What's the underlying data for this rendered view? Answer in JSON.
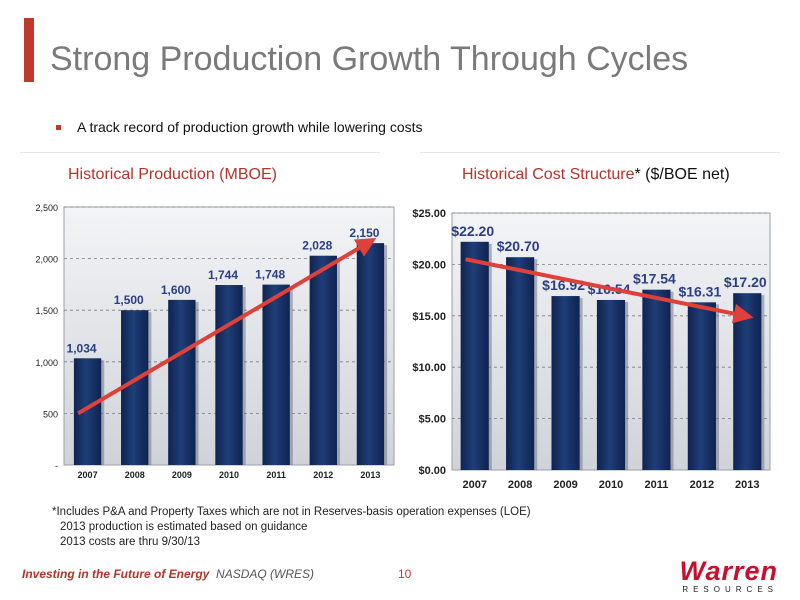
{
  "slide": {
    "title": "Strong Production Growth Through Cycles",
    "bullet": "A track record of production growth while lowering costs",
    "footnote_1": "*Includes P&A and Property Taxes which are not in Reserves-basis operation expenses (LOE)",
    "footnote_2": "2013 production is estimated based on guidance",
    "footnote_3": "2013 costs are thru 9/30/13",
    "footer_tagline": "Investing in the Future of Energy",
    "footer_ticker": "NASDAQ (WRES)",
    "page_number": "10",
    "logo_name": "Warren",
    "logo_sub": "RESOURCES"
  },
  "colors": {
    "accent": "#c0392b",
    "bar": "#1f3e78",
    "plot_bg": "#cfd3d9",
    "trend": "#e0403a",
    "label_blue": "#2b3f85"
  },
  "chart_data": [
    {
      "type": "bar",
      "title": "Historical Production (MBOE)",
      "categories": [
        "2007",
        "2008",
        "2009",
        "2010",
        "2011",
        "2012",
        "2013"
      ],
      "values": [
        1034,
        1500,
        1600,
        1744,
        1748,
        2028,
        2150
      ],
      "data_labels": [
        "1,034",
        "1,500",
        "1,600",
        "1,744",
        "1,748",
        "2,028",
        "2,150"
      ],
      "ylim": [
        0,
        2500
      ],
      "yticks": [
        0,
        500,
        1000,
        1500,
        2000,
        2500
      ],
      "ytick_labels": [
        "-",
        "500",
        "1,000",
        "1,500",
        "2,000",
        "2,500"
      ],
      "grid": true,
      "trend": {
        "direction": "up",
        "from": [
          2007,
          500
        ],
        "to": [
          2013,
          2180
        ]
      }
    },
    {
      "type": "bar",
      "title": "Historical Cost Structure",
      "title_suffix": "* ($/BOE net)",
      "categories": [
        "2007",
        "2008",
        "2009",
        "2010",
        "2011",
        "2012",
        "2013"
      ],
      "values": [
        22.2,
        20.7,
        16.92,
        16.54,
        17.54,
        16.31,
        17.2
      ],
      "data_labels": [
        "$22.20",
        "$20.70",
        "$16.92",
        "$16.54",
        "$17.54",
        "$16.31",
        "$17.20"
      ],
      "ylim": [
        0,
        25
      ],
      "yticks": [
        0,
        5,
        10,
        15,
        20,
        25
      ],
      "ytick_labels": [
        "$0.00",
        "$5.00",
        "$10.00",
        "$15.00",
        "$20.00",
        "$25.00"
      ],
      "grid": true,
      "trend": {
        "direction": "down",
        "from": [
          2007,
          20.5
        ],
        "to": [
          2013,
          14.9
        ]
      }
    }
  ]
}
